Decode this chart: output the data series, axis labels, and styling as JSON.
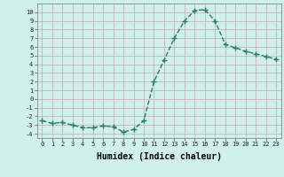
{
  "x": [
    0,
    1,
    2,
    3,
    4,
    5,
    6,
    7,
    8,
    9,
    10,
    11,
    12,
    13,
    14,
    15,
    16,
    17,
    18,
    19,
    20,
    21,
    22,
    23
  ],
  "y": [
    -2.5,
    -2.8,
    -2.7,
    -3.0,
    -3.3,
    -3.3,
    -3.1,
    -3.2,
    -3.8,
    -3.5,
    -2.5,
    2.0,
    4.5,
    7.0,
    9.0,
    10.2,
    10.3,
    9.0,
    6.3,
    5.9,
    5.5,
    5.2,
    4.9,
    4.6
  ],
  "xlabel": "Humidex (Indice chaleur)",
  "xlim": [
    -0.5,
    23.5
  ],
  "ylim": [
    -4.5,
    11.0
  ],
  "yticks": [
    -4,
    -3,
    -2,
    -1,
    0,
    1,
    2,
    3,
    4,
    5,
    6,
    7,
    8,
    9,
    10
  ],
  "xticks": [
    0,
    1,
    2,
    3,
    4,
    5,
    6,
    7,
    8,
    9,
    10,
    11,
    12,
    13,
    14,
    15,
    16,
    17,
    18,
    19,
    20,
    21,
    22,
    23
  ],
  "line_color": "#2d7a6e",
  "marker": "+",
  "bg_color": "#cff0ec",
  "grid_color": "#c8a8a8",
  "xlabel_fontsize": 7,
  "tick_fontsize": 5,
  "line_width": 1.0,
  "marker_size": 4
}
